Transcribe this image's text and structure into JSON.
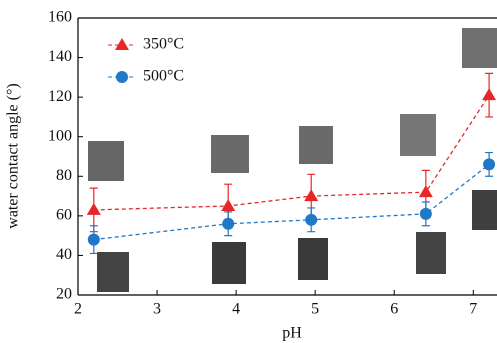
{
  "chart_data": {
    "type": "line",
    "x_label": "pH",
    "y_label": "water contact angle (°)",
    "xlim": [
      2,
      7.3
    ],
    "ylim": [
      20,
      160
    ],
    "xticks": [
      2,
      3,
      4,
      5,
      6,
      7
    ],
    "yticks": [
      20,
      40,
      60,
      80,
      100,
      120,
      140,
      160
    ],
    "series": [
      {
        "name": "350°C",
        "color": "#e8262a",
        "marker": "triangle",
        "x": [
          2.2,
          3.9,
          4.95,
          6.4,
          7.2
        ],
        "values": [
          63,
          65,
          70,
          72,
          121
        ],
        "errors": [
          11,
          11,
          11,
          11,
          11
        ]
      },
      {
        "name": "500°C",
        "color": "#1f78c8",
        "marker": "circle",
        "x": [
          2.2,
          3.9,
          4.95,
          6.4,
          7.2
        ],
        "values": [
          48,
          56,
          58,
          61,
          86
        ],
        "errors": [
          7,
          6,
          6,
          6,
          6
        ]
      }
    ]
  }
}
